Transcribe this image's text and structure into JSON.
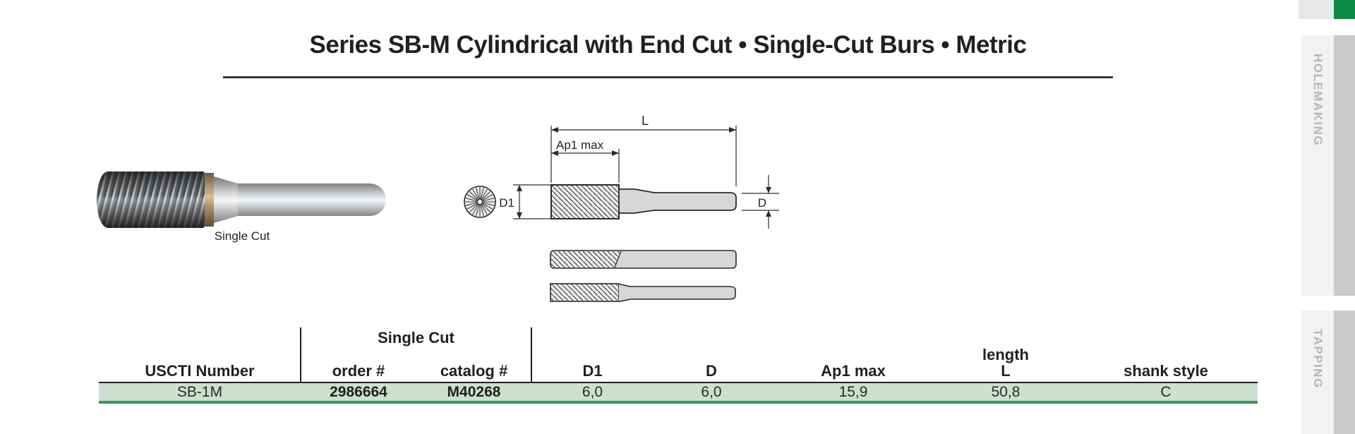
{
  "title": "Series SB-M Cylindrical with End Cut • Single-Cut Burs • Metric",
  "photo": {
    "caption": "Single Cut"
  },
  "diagram": {
    "dim_total_length": "L",
    "dim_cut_length": "Ap1 max",
    "dim_head_diameter": "D1",
    "dim_shank_diameter": "D"
  },
  "table": {
    "group_header": "Single Cut",
    "headers": {
      "uscti": "USCTI Number",
      "order": "order #",
      "catalog": "catalog #",
      "d1": "D1",
      "d": "D",
      "ap1": "Ap1 max",
      "length_word": "length",
      "l": "L",
      "shank": "shank style"
    },
    "row": {
      "uscti": "SB-1M",
      "order": "2986664",
      "catalog": "M40268",
      "d1": "6,0",
      "d": "6,0",
      "ap1": "15,9",
      "l": "50,8",
      "shank": "C"
    }
  },
  "sidebar": {
    "tab_holemaking": "HOLEMAKING",
    "tab_tapping": "TAPPING"
  },
  "colors": {
    "accent_green": "#0e8b45",
    "row_green_bg": "#cde0d0",
    "row_green_border": "#2f9e52"
  }
}
